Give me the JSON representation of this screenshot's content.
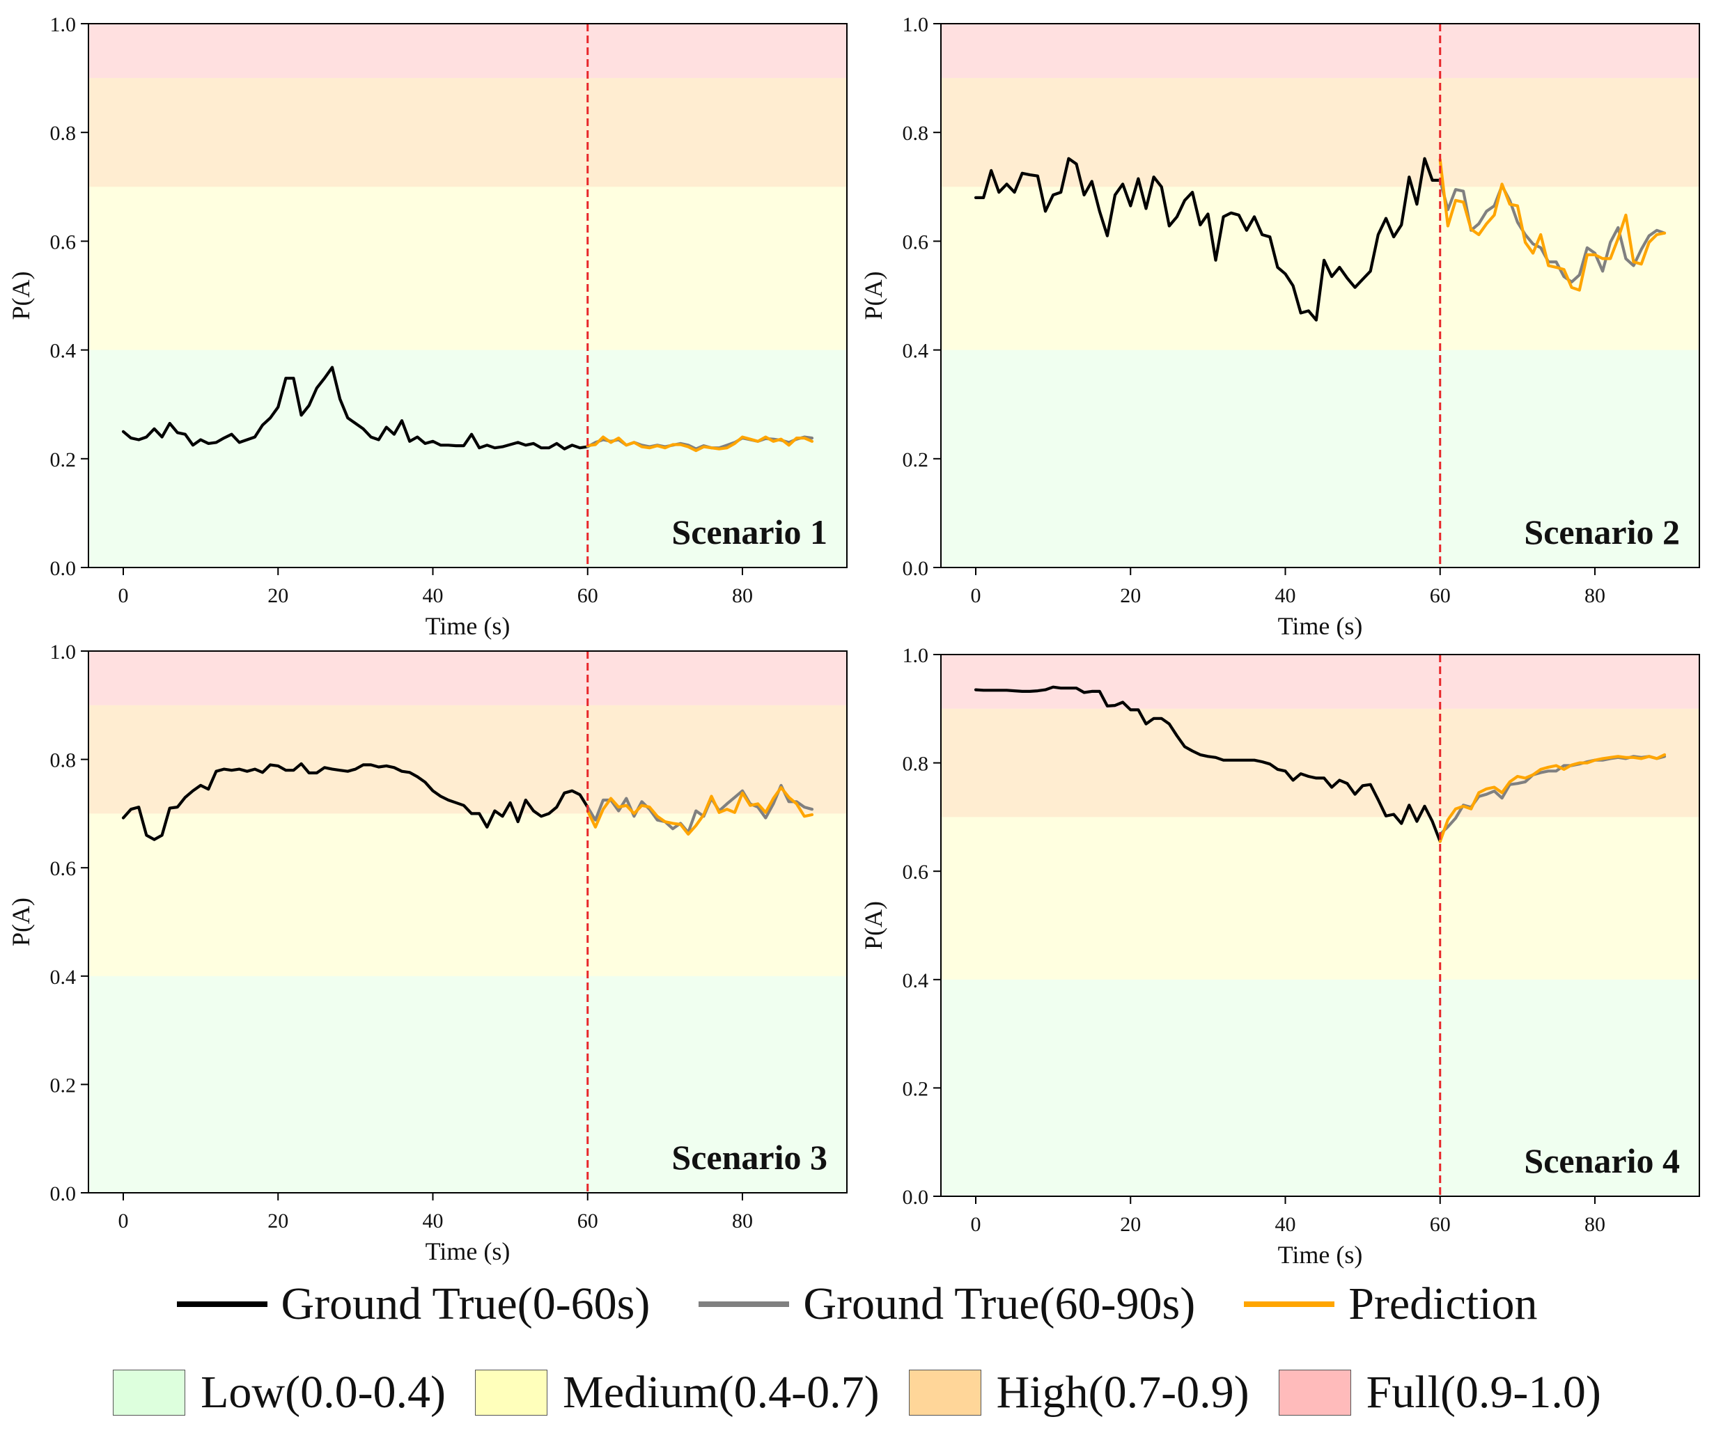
{
  "chart_data": [
    {
      "type": "line",
      "title": "Scenario 1",
      "xlabel": "Time (s)",
      "ylabel": "P(A)",
      "xlim": [
        -4.5,
        93.5
      ],
      "ylim": [
        0.0,
        1.0
      ],
      "xticks": [
        0,
        20,
        40,
        60,
        80
      ],
      "yticks": [
        0.0,
        0.2,
        0.4,
        0.6,
        0.8,
        1.0
      ],
      "split_x": 60,
      "series": [
        {
          "name": "Ground True(0-60s)",
          "color": "#000000",
          "x0": 0,
          "values": [
            0.25,
            0.238,
            0.235,
            0.24,
            0.255,
            0.24,
            0.265,
            0.248,
            0.245,
            0.225,
            0.235,
            0.228,
            0.23,
            0.238,
            0.245,
            0.23,
            0.235,
            0.24,
            0.262,
            0.275,
            0.295,
            0.348,
            0.348,
            0.28,
            0.298,
            0.33,
            0.348,
            0.368,
            0.31,
            0.275,
            0.265,
            0.255,
            0.24,
            0.235,
            0.258,
            0.245,
            0.27,
            0.232,
            0.24,
            0.228,
            0.232,
            0.225,
            0.225,
            0.224,
            0.224,
            0.245,
            0.22,
            0.225,
            0.22,
            0.222,
            0.226,
            0.23,
            0.225,
            0.228,
            0.22,
            0.22,
            0.228,
            0.218,
            0.225,
            0.22,
            0.222
          ]
        },
        {
          "name": "Ground True(60-90s)",
          "color": "#808080",
          "x0": 60,
          "values": [
            0.222,
            0.23,
            0.235,
            0.232,
            0.235,
            0.225,
            0.23,
            0.225,
            0.222,
            0.225,
            0.222,
            0.225,
            0.228,
            0.225,
            0.218,
            0.224,
            0.22,
            0.22,
            0.225,
            0.23,
            0.238,
            0.235,
            0.232,
            0.237,
            0.236,
            0.234,
            0.23,
            0.236,
            0.24,
            0.238
          ]
        },
        {
          "name": "Prediction",
          "color": "#FFA500",
          "x0": 60,
          "values": [
            0.224,
            0.226,
            0.24,
            0.23,
            0.238,
            0.225,
            0.23,
            0.222,
            0.22,
            0.224,
            0.22,
            0.226,
            0.226,
            0.222,
            0.215,
            0.222,
            0.22,
            0.218,
            0.22,
            0.228,
            0.24,
            0.236,
            0.232,
            0.24,
            0.232,
            0.236,
            0.225,
            0.238,
            0.238,
            0.232
          ]
        }
      ]
    },
    {
      "type": "line",
      "title": "Scenario 2",
      "xlabel": "Time (s)",
      "ylabel": "P(A)",
      "xlim": [
        -4.5,
        93.5
      ],
      "ylim": [
        0.0,
        1.0
      ],
      "xticks": [
        0,
        20,
        40,
        60,
        80
      ],
      "yticks": [
        0.0,
        0.2,
        0.4,
        0.6,
        0.8,
        1.0
      ],
      "split_x": 60,
      "series": [
        {
          "name": "Ground True(0-60s)",
          "color": "#000000",
          "x0": 0,
          "values": [
            0.68,
            0.68,
            0.73,
            0.69,
            0.705,
            0.69,
            0.725,
            0.722,
            0.72,
            0.655,
            0.685,
            0.69,
            0.752,
            0.742,
            0.685,
            0.71,
            0.655,
            0.61,
            0.685,
            0.705,
            0.665,
            0.715,
            0.66,
            0.718,
            0.7,
            0.628,
            0.645,
            0.675,
            0.69,
            0.63,
            0.65,
            0.565,
            0.645,
            0.652,
            0.648,
            0.62,
            0.645,
            0.612,
            0.608,
            0.552,
            0.54,
            0.518,
            0.468,
            0.472,
            0.455,
            0.565,
            0.535,
            0.552,
            0.532,
            0.515,
            0.53,
            0.545,
            0.612,
            0.642,
            0.608,
            0.63,
            0.718,
            0.668,
            0.752,
            0.712,
            0.712
          ]
        },
        {
          "name": "Ground True(60-90s)",
          "color": "#808080",
          "x0": 60,
          "values": [
            0.712,
            0.658,
            0.695,
            0.692,
            0.62,
            0.632,
            0.655,
            0.665,
            0.702,
            0.675,
            0.635,
            0.612,
            0.595,
            0.588,
            0.562,
            0.562,
            0.535,
            0.525,
            0.538,
            0.588,
            0.578,
            0.545,
            0.598,
            0.625,
            0.568,
            0.555,
            0.585,
            0.61,
            0.62,
            0.615
          ]
        },
        {
          "name": "Prediction",
          "color": "#FFA500",
          "x0": 60,
          "values": [
            0.75,
            0.628,
            0.675,
            0.672,
            0.622,
            0.612,
            0.632,
            0.648,
            0.705,
            0.668,
            0.665,
            0.598,
            0.578,
            0.612,
            0.555,
            0.552,
            0.548,
            0.515,
            0.51,
            0.575,
            0.575,
            0.568,
            0.568,
            0.605,
            0.648,
            0.562,
            0.558,
            0.598,
            0.612,
            0.615
          ]
        }
      ]
    },
    {
      "type": "line",
      "title": "Scenario 3",
      "xlabel": "Time (s)",
      "ylabel": "P(A)",
      "xlim": [
        -4.5,
        93.5
      ],
      "ylim": [
        0.0,
        1.0
      ],
      "xticks": [
        0,
        20,
        40,
        60,
        80
      ],
      "yticks": [
        0.0,
        0.2,
        0.4,
        0.6,
        0.8,
        1.0
      ],
      "split_x": 60,
      "series": [
        {
          "name": "Ground True(0-60s)",
          "color": "#000000",
          "x0": 0,
          "values": [
            0.692,
            0.708,
            0.712,
            0.66,
            0.652,
            0.66,
            0.71,
            0.712,
            0.73,
            0.742,
            0.752,
            0.745,
            0.778,
            0.782,
            0.78,
            0.782,
            0.778,
            0.782,
            0.776,
            0.79,
            0.788,
            0.78,
            0.78,
            0.792,
            0.775,
            0.775,
            0.785,
            0.782,
            0.78,
            0.778,
            0.782,
            0.79,
            0.79,
            0.786,
            0.788,
            0.785,
            0.778,
            0.776,
            0.768,
            0.758,
            0.742,
            0.732,
            0.725,
            0.72,
            0.715,
            0.7,
            0.7,
            0.675,
            0.705,
            0.695,
            0.72,
            0.685,
            0.725,
            0.705,
            0.695,
            0.7,
            0.712,
            0.738,
            0.742,
            0.735,
            0.712
          ]
        },
        {
          "name": "Ground True(60-90s)",
          "color": "#808080",
          "x0": 60,
          "values": [
            0.712,
            0.688,
            0.725,
            0.725,
            0.705,
            0.728,
            0.695,
            0.722,
            0.708,
            0.688,
            0.685,
            0.672,
            0.682,
            0.665,
            0.705,
            0.695,
            0.728,
            0.705,
            0.718,
            0.73,
            0.742,
            0.718,
            0.712,
            0.692,
            0.718,
            0.752,
            0.722,
            0.722,
            0.712,
            0.708
          ]
        },
        {
          "name": "Prediction",
          "color": "#FFA500",
          "x0": 60,
          "values": [
            0.705,
            0.675,
            0.708,
            0.728,
            0.712,
            0.715,
            0.7,
            0.715,
            0.712,
            0.695,
            0.685,
            0.682,
            0.68,
            0.662,
            0.678,
            0.698,
            0.732,
            0.702,
            0.708,
            0.702,
            0.738,
            0.715,
            0.718,
            0.702,
            0.728,
            0.748,
            0.73,
            0.718,
            0.695,
            0.698
          ]
        }
      ]
    },
    {
      "type": "line",
      "title": "Scenario 4",
      "xlabel": "Time (s)",
      "ylabel": "P(A)",
      "xlim": [
        -4.5,
        93.5
      ],
      "ylim": [
        0.0,
        1.0
      ],
      "xticks": [
        0,
        20,
        40,
        60,
        80
      ],
      "yticks": [
        0.0,
        0.2,
        0.4,
        0.6,
        0.8,
        1.0
      ],
      "split_x": 60,
      "series": [
        {
          "name": "Ground True(0-60s)",
          "color": "#000000",
          "x0": 0,
          "values": [
            0.935,
            0.934,
            0.934,
            0.934,
            0.934,
            0.933,
            0.932,
            0.932,
            0.933,
            0.935,
            0.94,
            0.938,
            0.938,
            0.938,
            0.93,
            0.932,
            0.932,
            0.905,
            0.906,
            0.912,
            0.898,
            0.898,
            0.872,
            0.882,
            0.882,
            0.872,
            0.85,
            0.83,
            0.822,
            0.815,
            0.812,
            0.81,
            0.805,
            0.805,
            0.805,
            0.805,
            0.805,
            0.802,
            0.798,
            0.788,
            0.785,
            0.768,
            0.78,
            0.775,
            0.772,
            0.772,
            0.755,
            0.768,
            0.762,
            0.742,
            0.758,
            0.76,
            0.732,
            0.702,
            0.705,
            0.688,
            0.722,
            0.692,
            0.72,
            0.692,
            0.655
          ]
        },
        {
          "name": "Ground True(60-90s)",
          "color": "#808080",
          "x0": 60,
          "values": [
            0.668,
            0.682,
            0.698,
            0.722,
            0.718,
            0.738,
            0.742,
            0.748,
            0.735,
            0.76,
            0.762,
            0.765,
            0.778,
            0.782,
            0.785,
            0.785,
            0.795,
            0.795,
            0.798,
            0.802,
            0.805,
            0.805,
            0.808,
            0.81,
            0.808,
            0.812,
            0.81,
            0.812,
            0.808,
            0.812
          ]
        },
        {
          "name": "Prediction",
          "color": "#FFA500",
          "x0": 60,
          "values": [
            0.655,
            0.695,
            0.715,
            0.72,
            0.715,
            0.745,
            0.752,
            0.755,
            0.745,
            0.765,
            0.775,
            0.772,
            0.778,
            0.788,
            0.792,
            0.795,
            0.788,
            0.796,
            0.8,
            0.8,
            0.805,
            0.808,
            0.81,
            0.812,
            0.81,
            0.81,
            0.808,
            0.812,
            0.808,
            0.815
          ]
        }
      ]
    }
  ],
  "zones": [
    {
      "label": "Low(0.0-0.4)",
      "from": 0.0,
      "to": 0.4,
      "color": "#DDFFDD"
    },
    {
      "label": "Medium(0.4-0.7)",
      "from": 0.4,
      "to": 0.7,
      "color": "#FFFFBB"
    },
    {
      "label": "High(0.7-0.9)",
      "from": 0.7,
      "to": 0.9,
      "color": "#FFD699"
    },
    {
      "label": "Full(0.9-1.0)",
      "from": 0.9,
      "to": 1.0,
      "color": "#FFBBBB"
    }
  ],
  "zone_alpha": 0.45,
  "split_line_color": "#E8262A",
  "legend": {
    "lines": [
      {
        "label": "Ground True(0-60s)",
        "color": "#000000"
      },
      {
        "label": "Ground True(60-90s)",
        "color": "#808080"
      },
      {
        "label": "Prediction",
        "color": "#FFA500"
      }
    ]
  }
}
